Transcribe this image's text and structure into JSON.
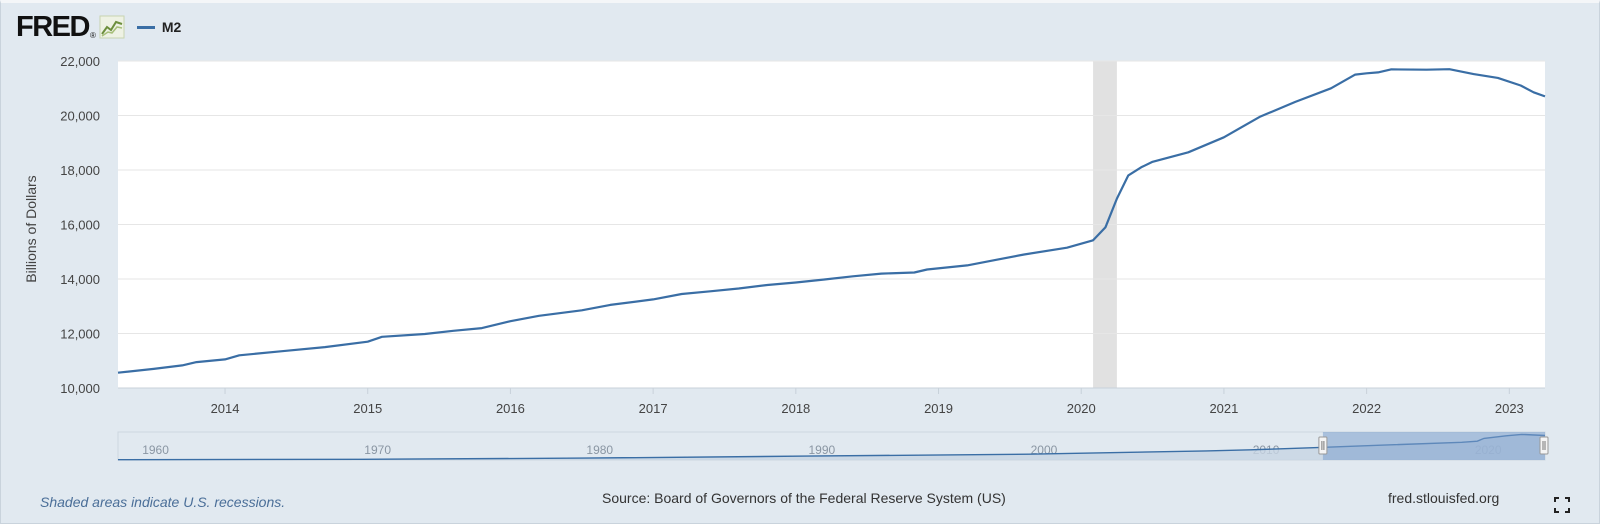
{
  "header": {
    "logo_text": "FRED",
    "logo_mark": "®",
    "logo_icon": "fred-line-graph-icon",
    "legend_label": "M2",
    "legend_color": "#3a6ea5"
  },
  "footer": {
    "note": "Shaded areas indicate U.S. recessions.",
    "source": "Source: Board of Governors of the Federal Reserve System (US)",
    "site": "fred.stlouisfed.org",
    "fullscreen_icon": "fullscreen-icon"
  },
  "chart_data": {
    "type": "line",
    "title": "",
    "xlabel": "",
    "ylabel": "Billions of Dollars",
    "xlim": [
      2013.25,
      2023.25
    ],
    "ylim": [
      10000,
      22000
    ],
    "y_ticks": [
      10000,
      12000,
      14000,
      16000,
      18000,
      20000,
      22000
    ],
    "y_tick_labels": [
      "10,000",
      "12,000",
      "14,000",
      "16,000",
      "18,000",
      "20,000",
      "22,000"
    ],
    "x_ticks": [
      "2014",
      "2015",
      "2016",
      "2017",
      "2018",
      "2019",
      "2020",
      "2021",
      "2022",
      "2023"
    ],
    "grid": true,
    "legend": "top-left",
    "line_color": "#3a6ea5",
    "recession_shading": [
      {
        "start": 2020.083,
        "end": 2020.25
      }
    ],
    "series": [
      {
        "name": "M2",
        "points": [
          [
            2013.25,
            10560
          ],
          [
            2013.5,
            10700
          ],
          [
            2013.7,
            10830
          ],
          [
            2013.8,
            10950
          ],
          [
            2014.0,
            11050
          ],
          [
            2014.1,
            11200
          ],
          [
            2014.4,
            11350
          ],
          [
            2014.7,
            11500
          ],
          [
            2015.0,
            11700
          ],
          [
            2015.1,
            11880
          ],
          [
            2015.4,
            11980
          ],
          [
            2015.6,
            12100
          ],
          [
            2015.8,
            12200
          ],
          [
            2016.0,
            12450
          ],
          [
            2016.2,
            12650
          ],
          [
            2016.5,
            12850
          ],
          [
            2016.7,
            13050
          ],
          [
            2017.0,
            13250
          ],
          [
            2017.2,
            13450
          ],
          [
            2017.4,
            13550
          ],
          [
            2017.6,
            13650
          ],
          [
            2017.8,
            13780
          ],
          [
            2018.0,
            13870
          ],
          [
            2018.2,
            13980
          ],
          [
            2018.4,
            14100
          ],
          [
            2018.6,
            14200
          ],
          [
            2018.83,
            14240
          ],
          [
            2018.92,
            14350
          ],
          [
            2019.2,
            14500
          ],
          [
            2019.4,
            14700
          ],
          [
            2019.6,
            14900
          ],
          [
            2019.9,
            15150
          ],
          [
            2020.083,
            15420
          ],
          [
            2020.17,
            15900
          ],
          [
            2020.25,
            16950
          ],
          [
            2020.33,
            17800
          ],
          [
            2020.42,
            18100
          ],
          [
            2020.5,
            18300
          ],
          [
            2020.75,
            18650
          ],
          [
            2021.0,
            19200
          ],
          [
            2021.25,
            19950
          ],
          [
            2021.5,
            20500
          ],
          [
            2021.75,
            21000
          ],
          [
            2021.92,
            21500
          ],
          [
            2022.0,
            21550
          ],
          [
            2022.08,
            21580
          ],
          [
            2022.17,
            21690
          ],
          [
            2022.42,
            21680
          ],
          [
            2022.58,
            21700
          ],
          [
            2022.75,
            21520
          ],
          [
            2022.92,
            21380
          ],
          [
            2023.08,
            21100
          ],
          [
            2023.17,
            20850
          ],
          [
            2023.25,
            20700
          ]
        ]
      }
    ],
    "navigator": {
      "xlim": [
        1959,
        2023.25
      ],
      "ticks": [
        "1960",
        "1970",
        "1980",
        "1990",
        "2000",
        "2010",
        "2020"
      ],
      "selection": [
        2013.25,
        2023.25
      ],
      "points": [
        [
          1959,
          290
        ],
        [
          1970,
          620
        ],
        [
          1980,
          1600
        ],
        [
          1990,
          3270
        ],
        [
          2000,
          4920
        ],
        [
          2008,
          7700
        ],
        [
          2010,
          8600
        ],
        [
          2013,
          10500
        ],
        [
          2016,
          12600
        ],
        [
          2019.5,
          15000
        ],
        [
          2020.2,
          15900
        ],
        [
          2020.5,
          18300
        ],
        [
          2021.5,
          20500
        ],
        [
          2022.2,
          21690
        ],
        [
          2023.25,
          20700
        ]
      ]
    }
  }
}
